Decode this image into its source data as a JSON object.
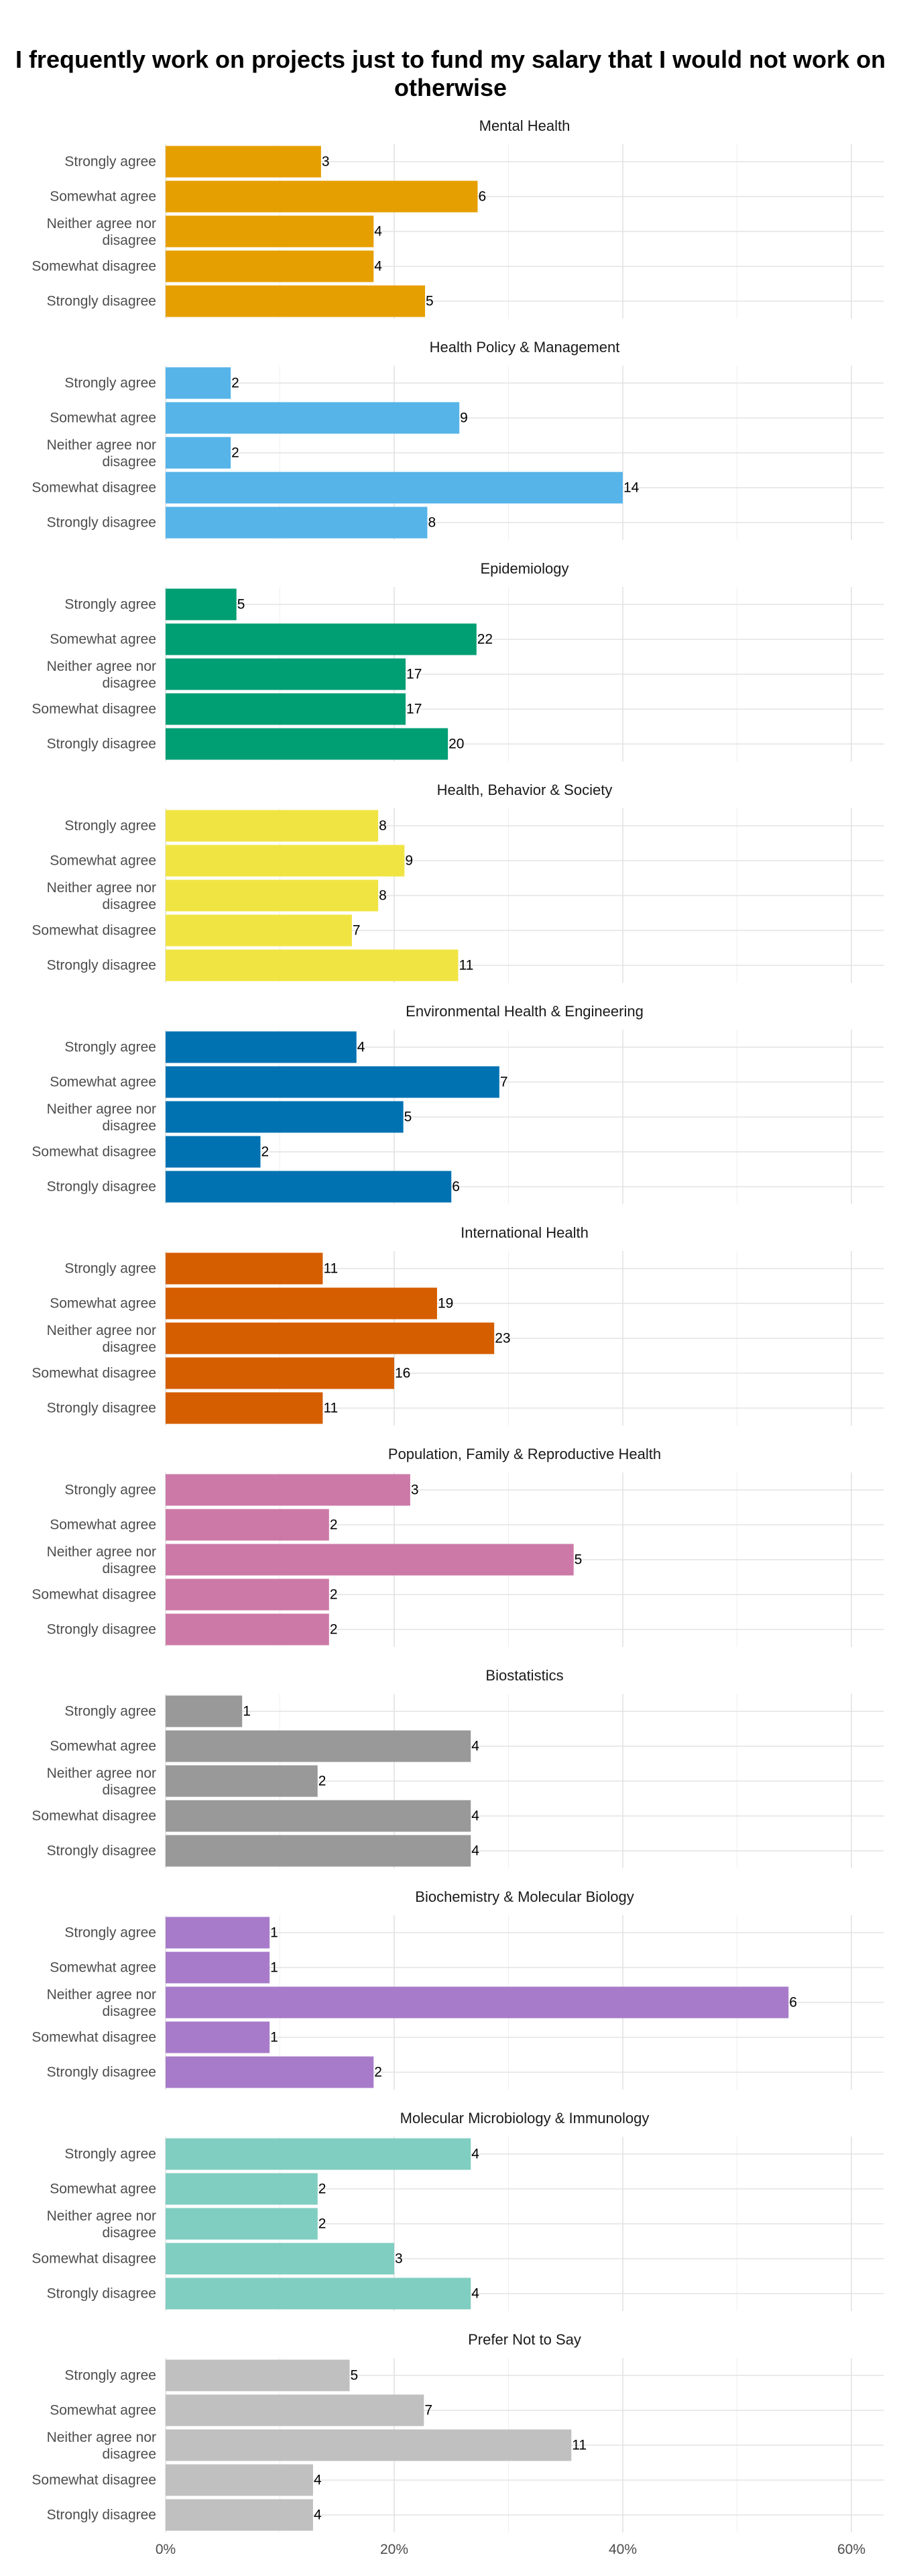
{
  "chart_data": {
    "type": "bar",
    "orientation": "horizontal",
    "title": "I frequently work on projects just to fund my salary that I would not work on otherwise",
    "categories": [
      "Strongly agree",
      "Somewhat agree",
      "Neither agree nor disagree",
      "Somewhat disagree",
      "Strongly disagree"
    ],
    "xlim": [
      0,
      0.63
    ],
    "x_ticks": [
      0,
      0.2,
      0.4,
      0.6
    ],
    "x_tick_labels": [
      "0%",
      "20%",
      "40%",
      "60%"
    ],
    "grid": true,
    "legend": "none",
    "facets": [
      {
        "title": "Mental Health",
        "color": "#E69F00",
        "counts": [
          3,
          6,
          4,
          4,
          5
        ],
        "percent": [
          0.136,
          0.273,
          0.182,
          0.182,
          0.227
        ]
      },
      {
        "title": "Health Policy & Management",
        "color": "#56B4E9",
        "counts": [
          2,
          9,
          2,
          14,
          8
        ],
        "percent": [
          0.057,
          0.257,
          0.057,
          0.4,
          0.229
        ]
      },
      {
        "title": "Epidemiology",
        "color": "#009E73",
        "counts": [
          5,
          22,
          17,
          17,
          20
        ],
        "percent": [
          0.062,
          0.272,
          0.21,
          0.21,
          0.247
        ]
      },
      {
        "title": "Health, Behavior & Society",
        "color": "#F0E442",
        "counts": [
          8,
          9,
          8,
          7,
          11
        ],
        "percent": [
          0.186,
          0.209,
          0.186,
          0.163,
          0.256
        ]
      },
      {
        "title": "Environmental Health & Engineering",
        "color": "#0072B2",
        "counts": [
          4,
          7,
          5,
          2,
          6
        ],
        "percent": [
          0.167,
          0.292,
          0.208,
          0.083,
          0.25
        ]
      },
      {
        "title": "International Health",
        "color": "#D55E00",
        "counts": [
          11,
          19,
          23,
          16,
          11
        ],
        "percent": [
          0.1375,
          0.2375,
          0.2875,
          0.2,
          0.1375
        ]
      },
      {
        "title": "Population, Family & Reproductive Health",
        "color": "#CC79A7",
        "counts": [
          3,
          2,
          5,
          2,
          2
        ],
        "percent": [
          0.214,
          0.143,
          0.357,
          0.143,
          0.143
        ]
      },
      {
        "title": "Biostatistics",
        "color": "#999999",
        "counts": [
          1,
          4,
          2,
          4,
          4
        ],
        "percent": [
          0.067,
          0.267,
          0.133,
          0.267,
          0.267
        ]
      },
      {
        "title": "Biochemistry & Molecular Biology",
        "color": "#A77BCA",
        "counts": [
          1,
          1,
          6,
          1,
          2
        ],
        "percent": [
          0.091,
          0.091,
          0.545,
          0.091,
          0.182
        ]
      },
      {
        "title": "Molecular Microbiology & Immunology",
        "color": "#80CDC1",
        "counts": [
          4,
          2,
          2,
          3,
          4
        ],
        "percent": [
          0.267,
          0.133,
          0.133,
          0.2,
          0.267
        ]
      },
      {
        "title": "Prefer Not to Say",
        "color": "#C0C0C0",
        "counts": [
          5,
          7,
          11,
          4,
          4
        ],
        "percent": [
          0.161,
          0.226,
          0.355,
          0.129,
          0.129
        ]
      }
    ]
  }
}
